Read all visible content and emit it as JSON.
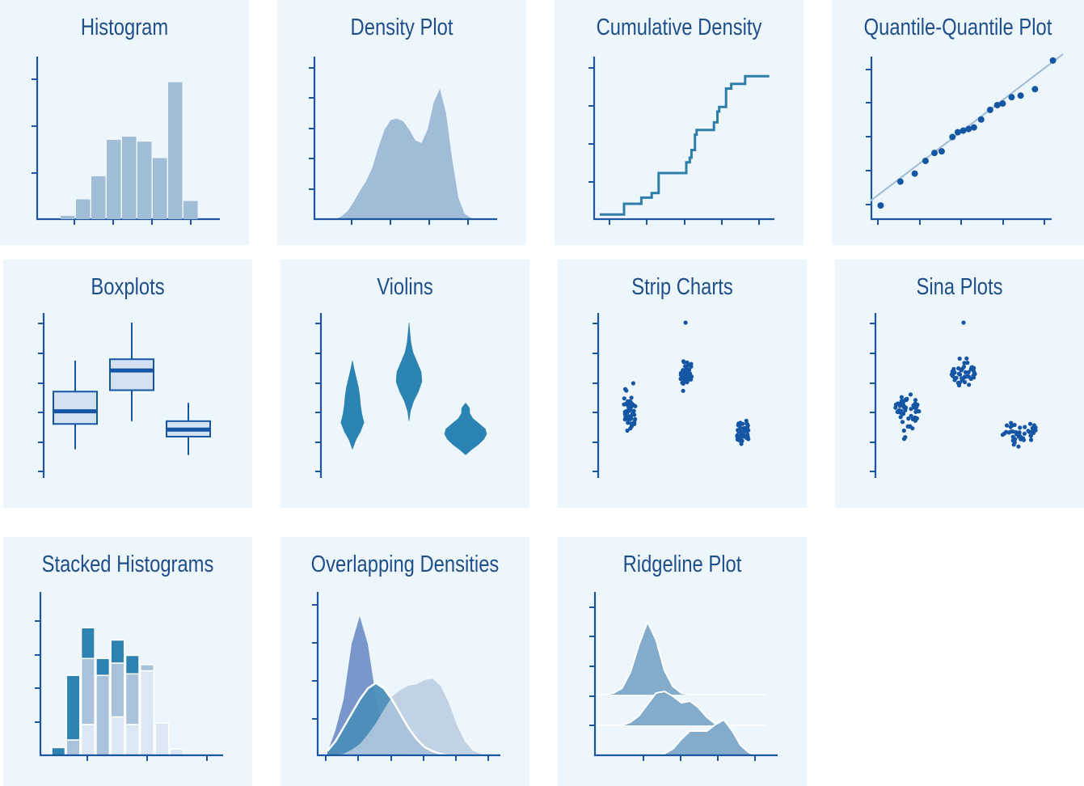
{
  "colors": {
    "panel_bg": "#eef6fd",
    "axis": "#1d56a0",
    "title": "#1e4f8c",
    "bar_light": "#a1bcd6",
    "density_fill": "#a1bcd6",
    "step_line": "#2d7eaa",
    "point": "#1456a3",
    "qq_line": "#a5bfd9",
    "box_fill": "#d3e1f3",
    "box_stroke": "#1456a3",
    "violin": "#2b83b3",
    "stack_dark": "#2e82b1",
    "stack_mid": "#a9c2db",
    "stack_light": "#dbe7f5",
    "overlap_a": "#7391c8",
    "overlap_b": "#4b8db9",
    "overlap_c": "#b9cbe1",
    "ridge": "#7ba6c9"
  },
  "chart_data": [
    {
      "id": "histogram",
      "type": "bar",
      "title": "Histogram",
      "values": [
        0.2,
        1.2,
        2.6,
        4.8,
        5.0,
        4.7,
        3.7,
        8.3,
        1.1
      ]
    },
    {
      "id": "density",
      "type": "area",
      "title": "Density Plot",
      "x": [
        0,
        0.04,
        0.08,
        0.12,
        0.16,
        0.2,
        0.24,
        0.28,
        0.32,
        0.36,
        0.4,
        0.44,
        0.48,
        0.52,
        0.56,
        0.6,
        0.64,
        0.68,
        0.72,
        0.76,
        0.8,
        0.84,
        0.88,
        0.92,
        0.96,
        1.0
      ],
      "values": [
        0,
        0.02,
        0.06,
        0.13,
        0.21,
        0.28,
        0.38,
        0.53,
        0.66,
        0.73,
        0.74,
        0.72,
        0.66,
        0.58,
        0.56,
        0.66,
        0.86,
        0.96,
        0.78,
        0.44,
        0.16,
        0.04,
        0.01,
        0,
        0,
        0
      ]
    },
    {
      "id": "cumulative",
      "type": "line",
      "title": "Cumulative Density",
      "x": [
        0.0,
        0.14,
        0.24,
        0.3,
        0.34,
        0.36,
        0.45,
        0.5,
        0.52,
        0.53,
        0.55,
        0.56,
        0.6,
        0.66,
        0.68,
        0.69,
        0.73,
        0.76,
        0.84,
        0.98
      ],
      "values": [
        0.03,
        0.1,
        0.14,
        0.17,
        0.3,
        0.3,
        0.3,
        0.37,
        0.4,
        0.45,
        0.55,
        0.58,
        0.58,
        0.63,
        0.7,
        0.73,
        0.85,
        0.88,
        0.93,
        0.93
      ]
    },
    {
      "id": "qq",
      "type": "scatter",
      "title": "Quantile-Quantile Plot",
      "x": [
        0.02,
        0.13,
        0.21,
        0.27,
        0.32,
        0.36,
        0.42,
        0.45,
        0.48,
        0.51,
        0.54,
        0.58,
        0.63,
        0.67,
        0.7,
        0.75,
        0.8,
        0.88,
        0.98
      ],
      "values": [
        0.04,
        0.19,
        0.24,
        0.32,
        0.37,
        0.38,
        0.47,
        0.5,
        0.51,
        0.52,
        0.53,
        0.58,
        0.64,
        0.67,
        0.68,
        0.72,
        0.73,
        0.77,
        0.95
      ],
      "line": [
        0.0,
        0.08,
        1.0,
        0.96
      ]
    },
    {
      "id": "boxplots",
      "type": "boxplot",
      "title": "Boxplots",
      "groups": [
        {
          "min": 0.1,
          "q1": 0.28,
          "median": 0.37,
          "q3": 0.51,
          "max": 0.73
        },
        {
          "min": 0.3,
          "q1": 0.52,
          "median": 0.66,
          "q3": 0.74,
          "max": 1.0
        },
        {
          "min": 0.06,
          "q1": 0.19,
          "median": 0.24,
          "q3": 0.3,
          "max": 0.43
        }
      ]
    },
    {
      "id": "violins",
      "type": "violin",
      "title": "Violins",
      "groups": [
        {
          "min": 0.1,
          "max": 0.73,
          "widths": [
            0.02,
            0.25,
            0.6,
            0.85,
            0.7,
            0.6,
            0.55,
            0.45,
            0.3,
            0.15,
            0.02
          ]
        },
        {
          "min": 0.3,
          "max": 1.0,
          "widths": [
            0.02,
            0.12,
            0.35,
            0.7,
            0.95,
            0.9,
            0.6,
            0.3,
            0.15,
            0.08,
            0.02
          ]
        },
        {
          "min": 0.06,
          "max": 0.43,
          "widths": [
            0.02,
            0.45,
            0.95,
            1.35,
            1.55,
            1.45,
            1.0,
            0.55,
            0.32,
            0.3,
            0.02
          ]
        }
      ]
    },
    {
      "id": "strip",
      "type": "scatter",
      "title": "Strip Charts",
      "n": [
        50,
        50,
        45
      ]
    },
    {
      "id": "sina",
      "type": "scatter",
      "title": "Sina Plots",
      "n": [
        50,
        50,
        45
      ]
    },
    {
      "id": "stacked",
      "type": "bar",
      "title": "Stacked Histograms",
      "series": [
        {
          "name": "",
          "values": [
            0.05,
            0.42,
            0.2,
            0.11,
            0.15,
            0.12,
            0.0,
            0,
            0,
            0
          ]
        },
        {
          "name": "",
          "values": [
            0,
            0.1,
            0.43,
            0.52,
            0.35,
            0.33,
            0.04,
            0,
            0,
            0
          ]
        },
        {
          "name": "",
          "values": [
            0,
            0,
            0.2,
            0.0,
            0.25,
            0.2,
            0.55,
            0.21,
            0.04,
            0
          ]
        }
      ]
    },
    {
      "id": "overlap",
      "type": "area",
      "title": "Overlapping Densities",
      "x": [
        0,
        0.05,
        0.1,
        0.15,
        0.2,
        0.25,
        0.3,
        0.35,
        0.4,
        0.45,
        0.5,
        0.55,
        0.6,
        0.65,
        0.7,
        0.75,
        0.8,
        0.85,
        0.9,
        0.95,
        1.0
      ],
      "series": [
        {
          "name": "",
          "values": [
            0.02,
            0.18,
            0.4,
            0.8,
            1.0,
            0.8,
            0.42,
            0.18,
            0.06,
            0.02,
            0,
            0,
            0,
            0,
            0,
            0,
            0,
            0,
            0,
            0,
            0
          ]
        },
        {
          "name": "",
          "values": [
            0.03,
            0.1,
            0.2,
            0.3,
            0.4,
            0.48,
            0.52,
            0.48,
            0.4,
            0.3,
            0.2,
            0.12,
            0.06,
            0.03,
            0.01,
            0,
            0,
            0,
            0,
            0,
            0
          ]
        },
        {
          "name": "",
          "values": [
            0,
            0,
            0.01,
            0.04,
            0.08,
            0.15,
            0.23,
            0.33,
            0.42,
            0.47,
            0.5,
            0.51,
            0.54,
            0.55,
            0.5,
            0.38,
            0.22,
            0.1,
            0.03,
            0.01,
            0
          ]
        }
      ]
    },
    {
      "id": "ridgeline",
      "type": "area",
      "title": "Ridgeline Plot",
      "x": [
        0,
        0.05,
        0.1,
        0.15,
        0.2,
        0.25,
        0.3,
        0.35,
        0.4,
        0.45,
        0.5,
        0.55,
        0.6,
        0.65,
        0.7,
        0.75,
        0.8,
        0.85,
        0.9,
        0.95,
        1.0
      ],
      "series": [
        {
          "name": "",
          "values": [
            0,
            0,
            0.02,
            0.08,
            0.28,
            0.62,
            0.9,
            0.68,
            0.3,
            0.1,
            0.02,
            0,
            0,
            0,
            0,
            0,
            0,
            0,
            0,
            0,
            0
          ]
        },
        {
          "name": "",
          "values": [
            0,
            0,
            0,
            0,
            0.04,
            0.12,
            0.26,
            0.4,
            0.42,
            0.36,
            0.28,
            0.3,
            0.22,
            0.1,
            0.02,
            0,
            0,
            0,
            0,
            0,
            0
          ]
        },
        {
          "name": "",
          "values": [
            0,
            0,
            0,
            0,
            0,
            0,
            0,
            0,
            0.02,
            0.08,
            0.2,
            0.3,
            0.3,
            0.3,
            0.38,
            0.44,
            0.3,
            0.12,
            0.03,
            0,
            0
          ]
        }
      ]
    }
  ]
}
